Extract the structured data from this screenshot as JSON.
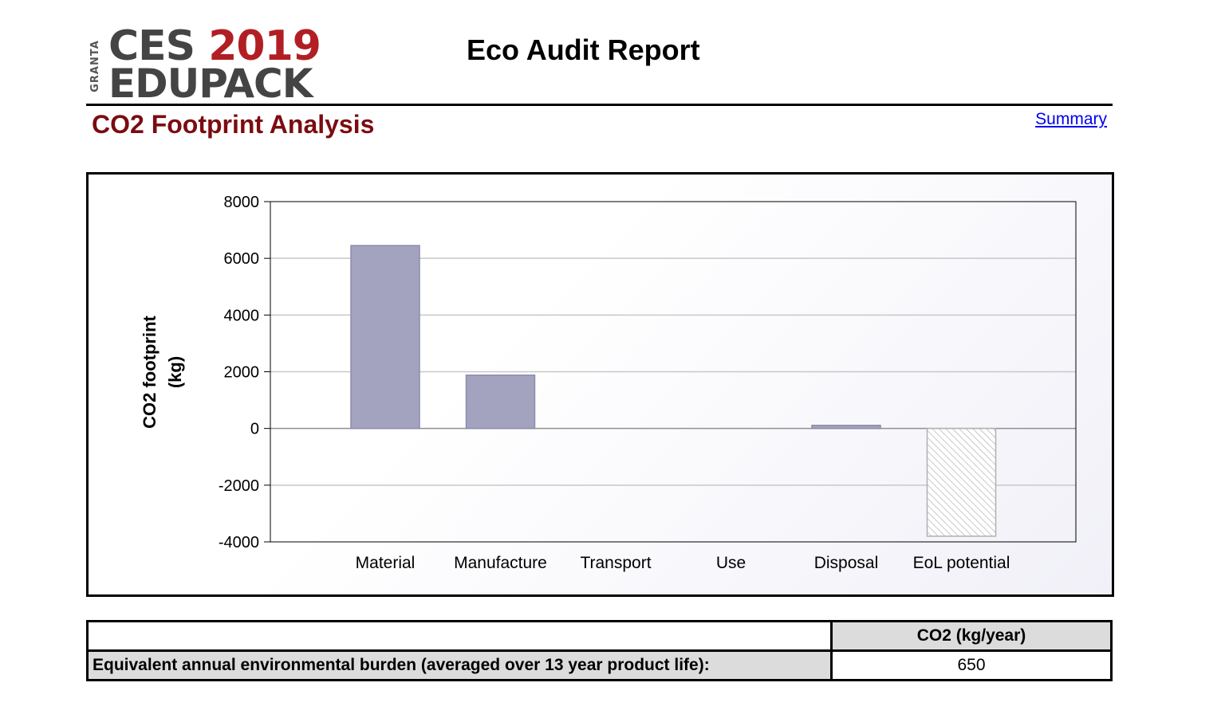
{
  "logo": {
    "vertical_text": "GRANTA",
    "line1_a": "CES",
    "line1_b": "2019",
    "line2": "EDUPACK"
  },
  "report_title": "Eco Audit Report",
  "section_title": "CO2 Footprint Analysis",
  "summary_link": "Summary",
  "colors": {
    "section_title": "#7b0c11",
    "bar_fill": "#a3a2bf",
    "bar_stroke": "#8d8cab",
    "hatched_bar": "#c8c8c8",
    "link": "#0000ee"
  },
  "chart_data": {
    "type": "bar",
    "title": "",
    "xlabel": "",
    "ylabel": "CO2 footprint (kg)",
    "ylim": [
      -4000,
      8000
    ],
    "yticks": [
      8000,
      6000,
      4000,
      2000,
      0,
      -2000,
      -4000
    ],
    "grid": true,
    "categories": [
      "Material",
      "Manufacture",
      "Transport",
      "Use",
      "Disposal",
      "EoL potential"
    ],
    "values": [
      6450,
      1880,
      0,
      0,
      110,
      -3800
    ],
    "hatched": [
      false,
      false,
      false,
      false,
      false,
      true
    ]
  },
  "table": {
    "header_col": "CO2 (kg/year)",
    "row_label": "Equivalent annual environmental burden (averaged over 13 year product life):",
    "row_value": "650"
  }
}
